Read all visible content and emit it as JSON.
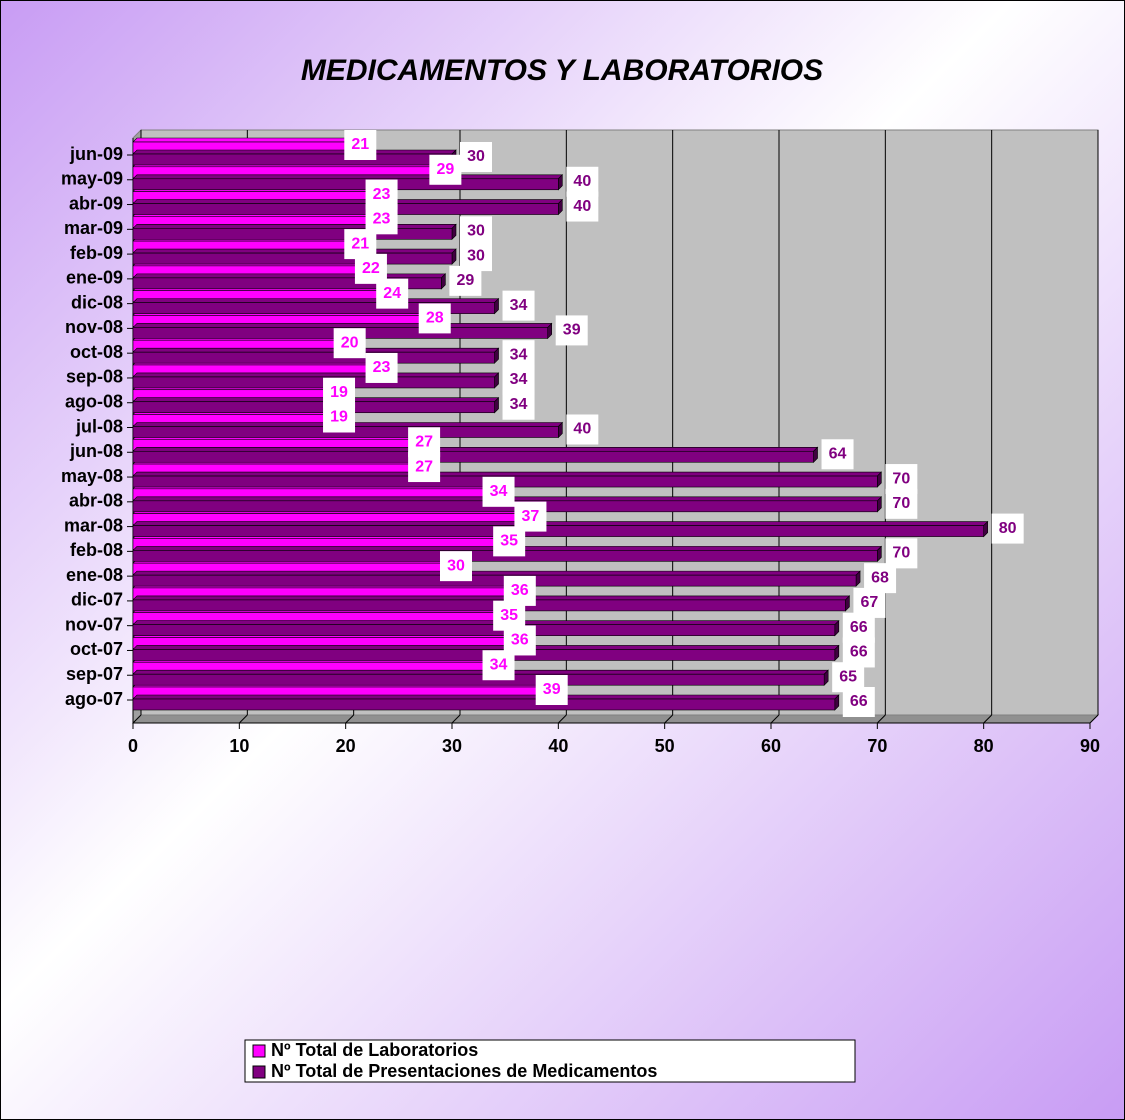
{
  "chart_data": {
    "type": "bar",
    "orientation": "horizontal",
    "title": "MEDICAMENTOS Y LABORATORIOS",
    "categories": [
      "jun-09",
      "may-09",
      "abr-09",
      "mar-09",
      "feb-09",
      "ene-09",
      "dic-08",
      "nov-08",
      "oct-08",
      "sep-08",
      "ago-08",
      "jul-08",
      "jun-08",
      "may-08",
      "abr-08",
      "mar-08",
      "feb-08",
      "ene-08",
      "dic-07",
      "nov-07",
      "oct-07",
      "sep-07",
      "ago-07"
    ],
    "series": [
      {
        "name": "Nº Total de Laboratorios",
        "color": "#ff00ff",
        "label_color": "#ff00ff",
        "values": [
          21,
          29,
          23,
          23,
          21,
          22,
          24,
          28,
          20,
          23,
          19,
          19,
          27,
          27,
          34,
          37,
          35,
          30,
          36,
          35,
          36,
          34,
          39
        ]
      },
      {
        "name": "Nº Total de Presentaciones de Medicamentos",
        "color": "#800080",
        "label_color": "#800080",
        "values": [
          30,
          40,
          40,
          30,
          30,
          29,
          34,
          39,
          34,
          34,
          34,
          40,
          64,
          70,
          70,
          80,
          70,
          68,
          67,
          66,
          66,
          65,
          66
        ]
      }
    ],
    "xlim": [
      0,
      90
    ],
    "xticks": [
      0,
      10,
      20,
      30,
      40,
      50,
      60,
      70,
      80,
      90
    ],
    "grid": true
  }
}
